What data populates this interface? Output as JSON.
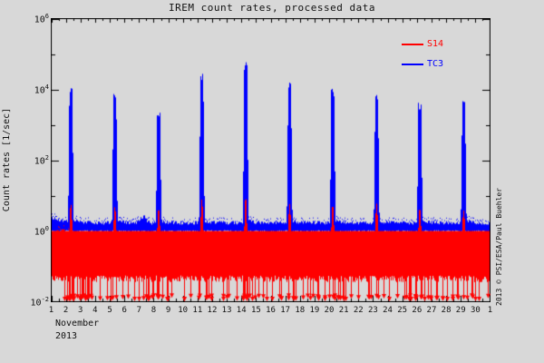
{
  "chart_data": {
    "type": "line",
    "title": "IREM count rates, processed data",
    "ylabel": "Count rates [1/sec]",
    "x_month": "November",
    "x_year": "2013",
    "copyright": "2013 © PSI/ESA/Paul Buehler",
    "background": "#d8d8d8",
    "frame_color": "#000000",
    "grid": false,
    "yscale": "log",
    "ylim": [
      0.01,
      1000000
    ],
    "yticks_exp": [
      6,
      4,
      2,
      0,
      -2
    ],
    "yticks_minor_exp": [
      5,
      3,
      1,
      -1
    ],
    "xlim_days": [
      1,
      31
    ],
    "xtick_labels": [
      "1",
      "2",
      "3",
      "4",
      "5",
      "6",
      "7",
      "8",
      "9",
      "10",
      "11",
      "12",
      "13",
      "14",
      "15",
      "16",
      "17",
      "18",
      "19",
      "20",
      "21",
      "22",
      "23",
      "24",
      "25",
      "26",
      "27",
      "28",
      "29",
      "30",
      "1"
    ],
    "legend": {
      "position": "top-right-inside",
      "items": [
        {
          "label": "S14",
          "color": "#ff0000"
        },
        {
          "label": "TC3",
          "color": "#0000ff"
        }
      ]
    },
    "series": [
      {
        "name": "TC3",
        "color": "#0000ff",
        "baseline": [
          1.05,
          1.5
        ],
        "start_decay": {
          "amp": 0.45,
          "tau": 0.6
        },
        "bump": {
          "day": 7.3,
          "amp": 0.5,
          "width": 0.25
        },
        "spike_core": 0.1,
        "spike_fall": 0.12,
        "spikes": [
          {
            "day": 2.35,
            "peak": 12000
          },
          {
            "day": 5.35,
            "peak": 7600
          },
          {
            "day": 8.35,
            "peak": 2500
          },
          {
            "day": 11.3,
            "peak": 33000
          },
          {
            "day": 14.3,
            "peak": 59000
          },
          {
            "day": 17.3,
            "peak": 20000
          },
          {
            "day": 20.25,
            "peak": 11000
          },
          {
            "day": 23.25,
            "peak": 8000
          },
          {
            "day": 26.2,
            "peak": 4200
          },
          {
            "day": 29.2,
            "peak": 4700
          }
        ]
      },
      {
        "name": "S14",
        "color": "#ff0000",
        "baseline": [
          0.055,
          0.33
        ],
        "hump": {
          "day": 1.7,
          "amp": 1.6,
          "width": 0.8
        },
        "bump": {
          "day": 7.3,
          "amp": 0.3,
          "width": 0.3
        },
        "spike_core": 0.04,
        "spike_fall": 0.08,
        "spikes": [
          {
            "day": 2.35,
            "peak": 6
          },
          {
            "day": 5.35,
            "peak": 5
          },
          {
            "day": 8.35,
            "peak": 4
          },
          {
            "day": 11.3,
            "peak": 8
          },
          {
            "day": 14.3,
            "peak": 8
          },
          {
            "day": 17.3,
            "peak": 6
          },
          {
            "day": 20.25,
            "peak": 5
          },
          {
            "day": 23.25,
            "peak": 6
          },
          {
            "day": 26.2,
            "peak": 4
          },
          {
            "day": 29.2,
            "peak": 4
          }
        ],
        "dropouts": {
          "count": 150,
          "floor": 0.0145
        }
      }
    ]
  }
}
